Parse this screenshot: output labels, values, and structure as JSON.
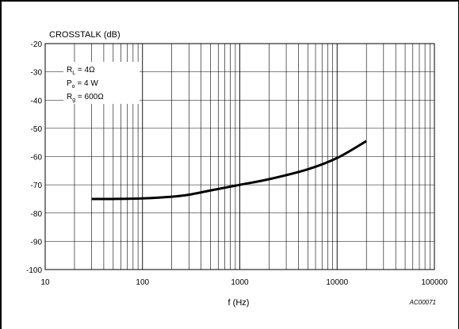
{
  "chart_data": {
    "type": "line",
    "title": "CROSSTALK (dB)",
    "xlabel": "f (Hz)",
    "ylabel": "",
    "xscale": "log",
    "xlim": [
      10,
      100000
    ],
    "ylim": [
      -100,
      -20
    ],
    "grid": true,
    "x_ticks": [
      10,
      100,
      1000,
      10000,
      100000
    ],
    "x_tick_labels": [
      "10",
      "100",
      "1000",
      "10000",
      "100000"
    ],
    "y_ticks": [
      -100,
      -90,
      -80,
      -70,
      -60,
      -50,
      -40,
      -30,
      -20
    ],
    "y_tick_labels": [
      "-100",
      "-90",
      "-80",
      "-70",
      "-60",
      "-50",
      "-40",
      "-30",
      "-20"
    ],
    "legend_box": {
      "placement": "top-left",
      "lines": [
        {
          "main": "R",
          "sub": "L",
          "rest": " = 4Ω"
        },
        {
          "main": "P",
          "sub": "o",
          "rest": " = 4 W"
        },
        {
          "main": "R",
          "sub": "g",
          "rest": " = 600Ω"
        }
      ]
    },
    "figure_code": "AC00071",
    "series": [
      {
        "x": [
          30,
          50,
          100,
          200,
          300,
          500,
          1000,
          2000,
          5000,
          10000,
          20000
        ],
        "y": [
          -75,
          -75,
          -74.8,
          -74.2,
          -73.5,
          -72,
          -70,
          -68,
          -64.5,
          -60.5,
          -54.5
        ]
      }
    ]
  }
}
